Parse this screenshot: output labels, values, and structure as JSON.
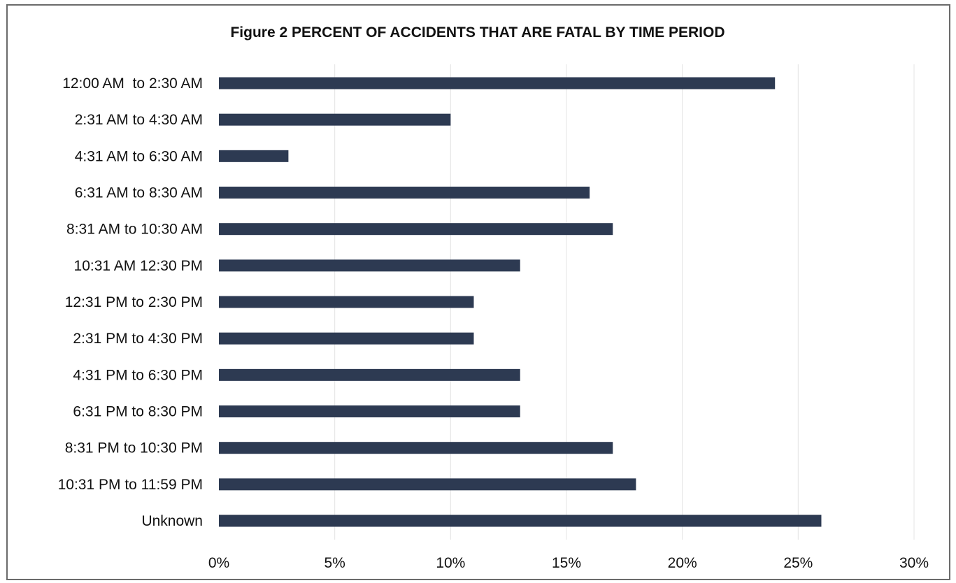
{
  "chart_data": {
    "type": "bar",
    "orientation": "horizontal",
    "title": "Figure 2 PERCENT OF ACCIDENTS THAT ARE FATAL BY TIME PERIOD",
    "xlabel": "",
    "ylabel": "",
    "categories": [
      "12:00 AM  to 2:30 AM",
      "2:31 AM to 4:30 AM",
      "4:31 AM to 6:30 AM",
      "6:31 AM to 8:30 AM",
      "8:31 AM to 10:30 AM",
      "10:31 AM 12:30 PM",
      "12:31 PM to 2:30 PM",
      "2:31 PM to 4:30 PM",
      "4:31 PM to 6:30 PM",
      "6:31 PM to 8:30 PM",
      "8:31 PM to 10:30 PM",
      "10:31 PM to 11:59 PM",
      "Unknown"
    ],
    "values": [
      24,
      10,
      3,
      16,
      17,
      13,
      11,
      11,
      13,
      13,
      17,
      18,
      26
    ],
    "xlim": [
      0,
      30
    ],
    "xticks": [
      0,
      5,
      10,
      15,
      20,
      25,
      30
    ],
    "xtick_labels": [
      "0%",
      "5%",
      "10%",
      "15%",
      "20%",
      "25%",
      "30%"
    ],
    "value_unit": "%",
    "grid": true,
    "legend": "none",
    "bar_color": "#2d3a52"
  }
}
